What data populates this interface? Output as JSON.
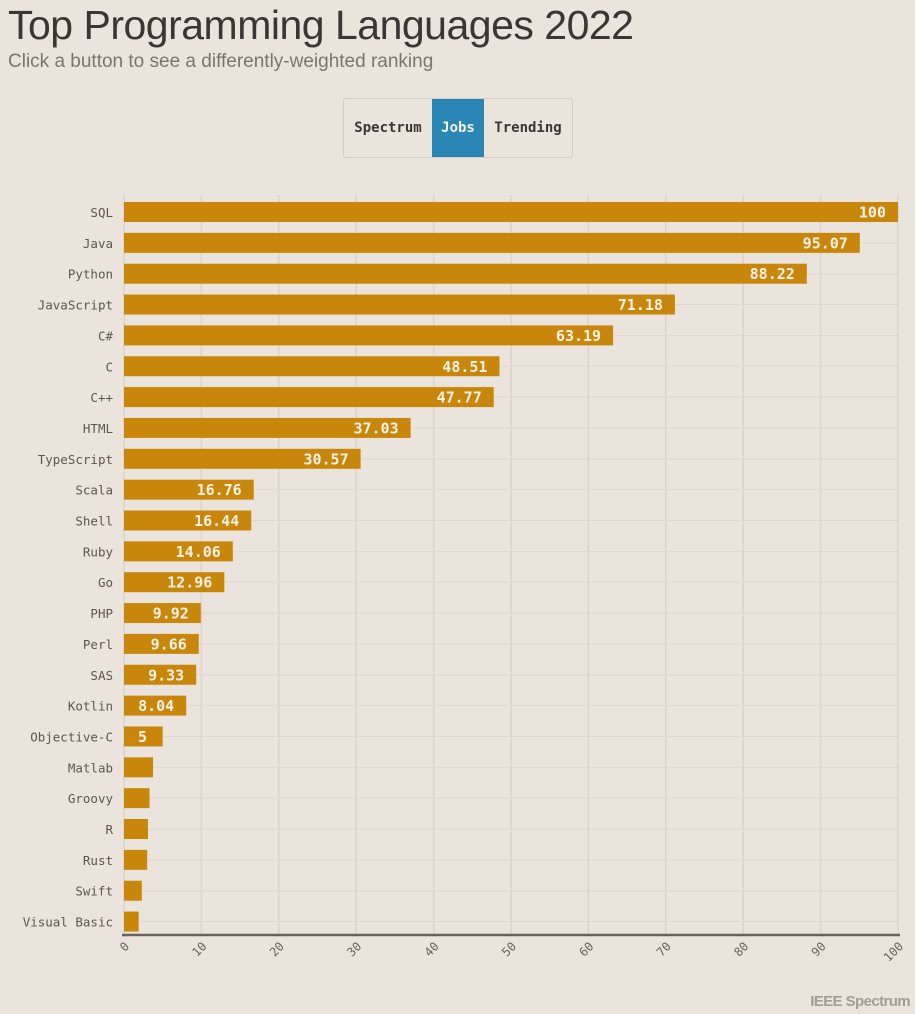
{
  "header": {
    "title": "Top Programming Languages 2022",
    "subtitle": "Click a button to see a differently-weighted ranking"
  },
  "buttons": [
    {
      "label": "Spectrum",
      "active": false
    },
    {
      "label": "Jobs",
      "active": true
    },
    {
      "label": "Trending",
      "active": false
    }
  ],
  "footer": {
    "logo": "IEEE Spectrum"
  },
  "colors": {
    "bar": "#c8870a",
    "active_button": "#2a87b5",
    "background": "#ebe4dd"
  },
  "chart_data": {
    "type": "bar",
    "orientation": "horizontal",
    "title": "",
    "xlabel": "",
    "ylabel": "",
    "xlim": [
      0,
      100
    ],
    "grid": true,
    "categories": [
      "SQL",
      "Java",
      "Python",
      "JavaScript",
      "C#",
      "C",
      "C++",
      "HTML",
      "TypeScript",
      "Scala",
      "Shell",
      "Ruby",
      "Go",
      "PHP",
      "Perl",
      "SAS",
      "Kotlin",
      "Objective-C",
      "Matlab",
      "Groovy",
      "R",
      "Rust",
      "Swift",
      "Visual Basic"
    ],
    "values": [
      100,
      95.07,
      88.22,
      71.18,
      63.19,
      48.51,
      47.77,
      37.03,
      30.57,
      16.76,
      16.44,
      14.06,
      12.96,
      9.92,
      9.66,
      9.33,
      8.04,
      5,
      3.75,
      3.3,
      3.1,
      3.0,
      2.3,
      1.9
    ],
    "data_labels": [
      "100",
      "95.07",
      "88.22",
      "71.18",
      "63.19",
      "48.51",
      "47.77",
      "37.03",
      "30.57",
      "16.76",
      "16.44",
      "14.06",
      "12.96",
      "9.92",
      "9.66",
      "9.33",
      "8.04",
      "5",
      "",
      "",
      "",
      "",
      "",
      ""
    ],
    "x_ticks": [
      "0",
      "10",
      "20",
      "30",
      "40",
      "50",
      "60",
      "70",
      "80",
      "90",
      "100"
    ]
  }
}
